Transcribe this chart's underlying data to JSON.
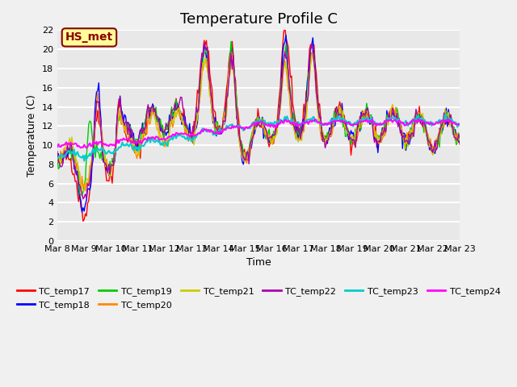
{
  "title": "Temperature Profile C",
  "xlabel": "Time",
  "ylabel": "Temperature (C)",
  "ylim": [
    0,
    22
  ],
  "yticks": [
    0,
    2,
    4,
    6,
    8,
    10,
    12,
    14,
    16,
    18,
    20,
    22
  ],
  "x_labels": [
    "Mar 8",
    "Mar 9",
    "Mar 10",
    "Mar 11",
    "Mar 12",
    "Mar 13",
    "Mar 14",
    "Mar 15",
    "Mar 16",
    "Mar 17",
    "Mar 18",
    "Mar 19",
    "Mar 20",
    "Mar 21",
    "Mar 22",
    "Mar 23"
  ],
  "series_colors": {
    "TC_temp17": "#ff0000",
    "TC_temp18": "#0000ff",
    "TC_temp19": "#00cc00",
    "TC_temp20": "#ff8800",
    "TC_temp21": "#cccc00",
    "TC_temp22": "#aa00aa",
    "TC_temp23": "#00cccc",
    "TC_temp24": "#ff00ff"
  },
  "annotation_text": "HS_met",
  "annotation_color": "#8b0000",
  "annotation_bg": "#ffff99",
  "background_color": "#e8e8e8",
  "grid_color": "#ffffff",
  "title_fontsize": 13
}
